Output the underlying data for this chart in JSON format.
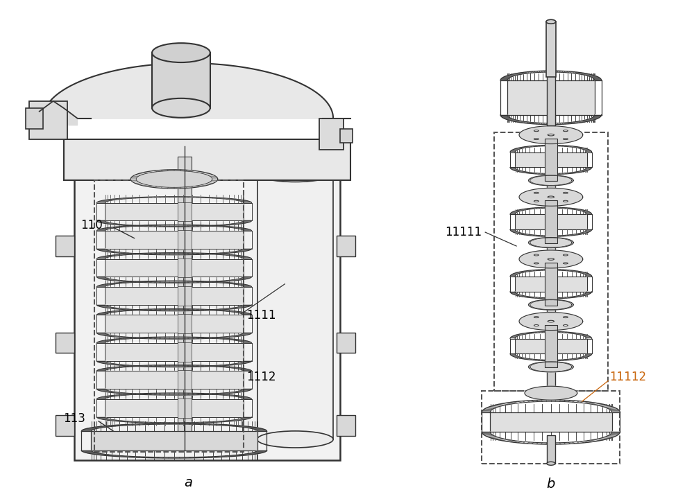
{
  "background_color": "#ffffff",
  "label_a": "a",
  "label_b": "b",
  "label_110": "110",
  "label_113": "113",
  "label_1111": "1111",
  "label_1112": "1112",
  "label_11111": "11111",
  "label_11112": "11112",
  "label_color_black": "#000000",
  "label_color_orange": "#c8640a",
  "line_color": "#333333",
  "gear_fill": "#e8e8e8",
  "gear_edge": "#333333",
  "figsize": [
    10.0,
    7.2
  ],
  "dpi": 100
}
